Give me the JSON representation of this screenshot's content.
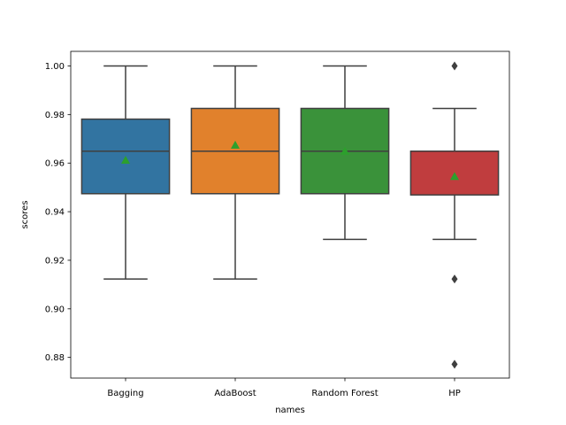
{
  "chart_data": {
    "type": "box",
    "title": "",
    "xlabel": "names",
    "ylabel": "scores",
    "ylim": [
      0.8715,
      1.006
    ],
    "yticks": [
      0.88,
      0.9,
      0.92,
      0.94,
      0.96,
      0.98,
      1.0
    ],
    "ytick_labels": [
      "0.88",
      "0.90",
      "0.92",
      "0.94",
      "0.96",
      "0.98",
      "1.00"
    ],
    "categories": [
      "Bagging",
      "AdaBoost",
      "Random Forest",
      "HP"
    ],
    "grid": false,
    "legend": "none",
    "mean_color": "#2ca02c",
    "box_edge_color": "#3f3f3f",
    "series": [
      {
        "category": "Bagging",
        "color": "#3274a1",
        "whisker_low": 0.9123,
        "q1": 0.9474,
        "median": 0.9649,
        "q3": 0.9781,
        "whisker_high": 1.0,
        "mean": 0.9612,
        "outliers": []
      },
      {
        "category": "AdaBoost",
        "color": "#e1812c",
        "whisker_low": 0.9123,
        "q1": 0.9474,
        "median": 0.9649,
        "q3": 0.9825,
        "whisker_high": 1.0,
        "mean": 0.9674,
        "outliers": []
      },
      {
        "category": "Random Forest",
        "color": "#3a923a",
        "whisker_low": 0.9286,
        "q1": 0.9474,
        "median": 0.9649,
        "q3": 0.9825,
        "whisker_high": 1.0,
        "mean": 0.9649,
        "outliers": []
      },
      {
        "category": "HP",
        "color": "#c03d3e",
        "whisker_low": 0.9286,
        "q1": 0.9469,
        "median": 0.9649,
        "q3": 0.9649,
        "whisker_high": 0.9825,
        "mean": 0.9545,
        "outliers": [
          1.0,
          0.9123,
          0.8772
        ]
      }
    ]
  }
}
